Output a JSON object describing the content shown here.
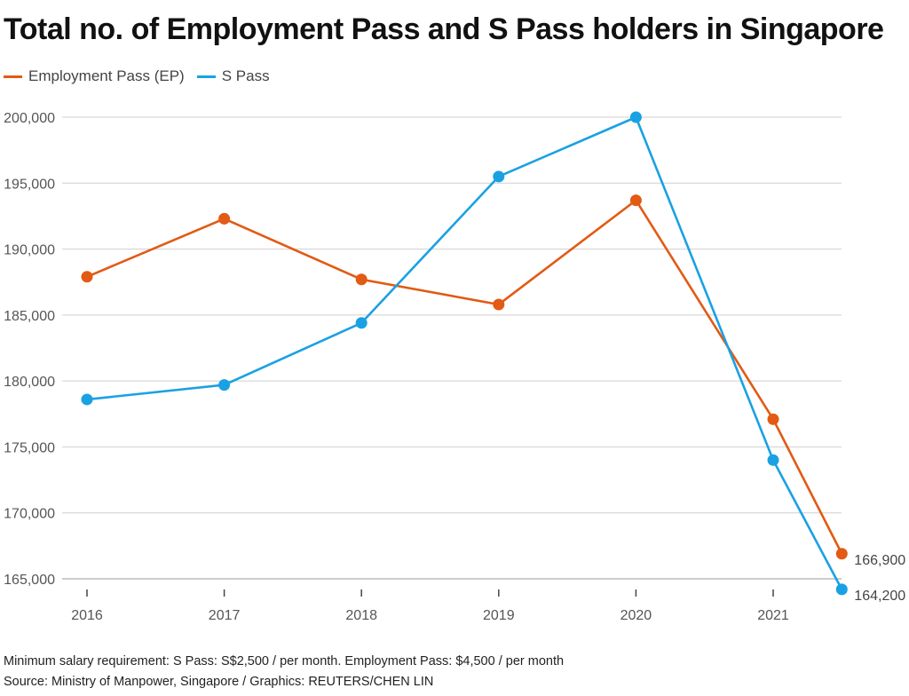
{
  "chart_data": {
    "type": "line",
    "title": "Total no. of Employment Pass and S Pass holders in Singapore",
    "xlabel": "",
    "ylabel": "",
    "categories": [
      "2016",
      "2017",
      "2018",
      "2019",
      "2020",
      "2021"
    ],
    "x": [
      2016,
      2017,
      2018,
      2019,
      2020,
      2021,
      2021.5
    ],
    "ylim": [
      165000,
      200000
    ],
    "yticks": [
      "165,000",
      "170,000",
      "175,000",
      "180,000",
      "185,000",
      "190,000",
      "195,000",
      "200,000"
    ],
    "ytick_values": [
      165000,
      170000,
      175000,
      180000,
      185000,
      190000,
      195000,
      200000
    ],
    "grid": true,
    "legend_position": "top-left",
    "series": [
      {
        "name": "Employment Pass (EP)",
        "color": "#e25a14",
        "values": [
          187900,
          192300,
          187700,
          185800,
          193700,
          177100,
          166900
        ],
        "end_label": "166,900"
      },
      {
        "name": "S Pass",
        "color": "#1aa1e3",
        "values": [
          178600,
          179700,
          184400,
          195500,
          200000,
          174000,
          164200
        ],
        "end_label": "164,200"
      }
    ]
  },
  "footer": {
    "note": "Minimum salary requirement: S Pass: S$2,500 / per month. Employment Pass: $4,500 / per month",
    "source": "Source: Ministry of Manpower, Singapore / Graphics: REUTERS/CHEN LIN"
  }
}
